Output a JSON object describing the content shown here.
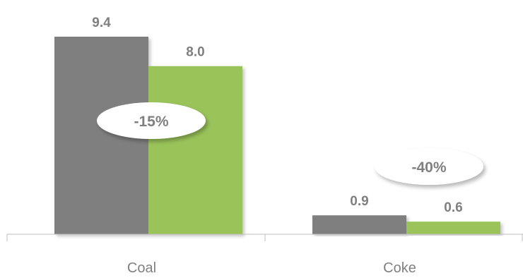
{
  "chart_data": {
    "type": "bar",
    "title": "",
    "xlabel": "",
    "ylabel": "",
    "categories": [
      "Coal",
      "Coke"
    ],
    "series": [
      {
        "color": "#7f7f7f",
        "values": [
          9.4,
          0.9
        ],
        "labels": [
          "9.4",
          "0.9"
        ]
      },
      {
        "color": "#9ac45a",
        "values": [
          8.0,
          0.6
        ],
        "labels": [
          "8.0",
          "0.6"
        ]
      }
    ],
    "ylim": [
      0,
      9.4
    ],
    "grid": false,
    "annotations": [
      {
        "category": "Coal",
        "text": "-15%"
      },
      {
        "category": "Coke",
        "text": "-40%"
      }
    ]
  }
}
